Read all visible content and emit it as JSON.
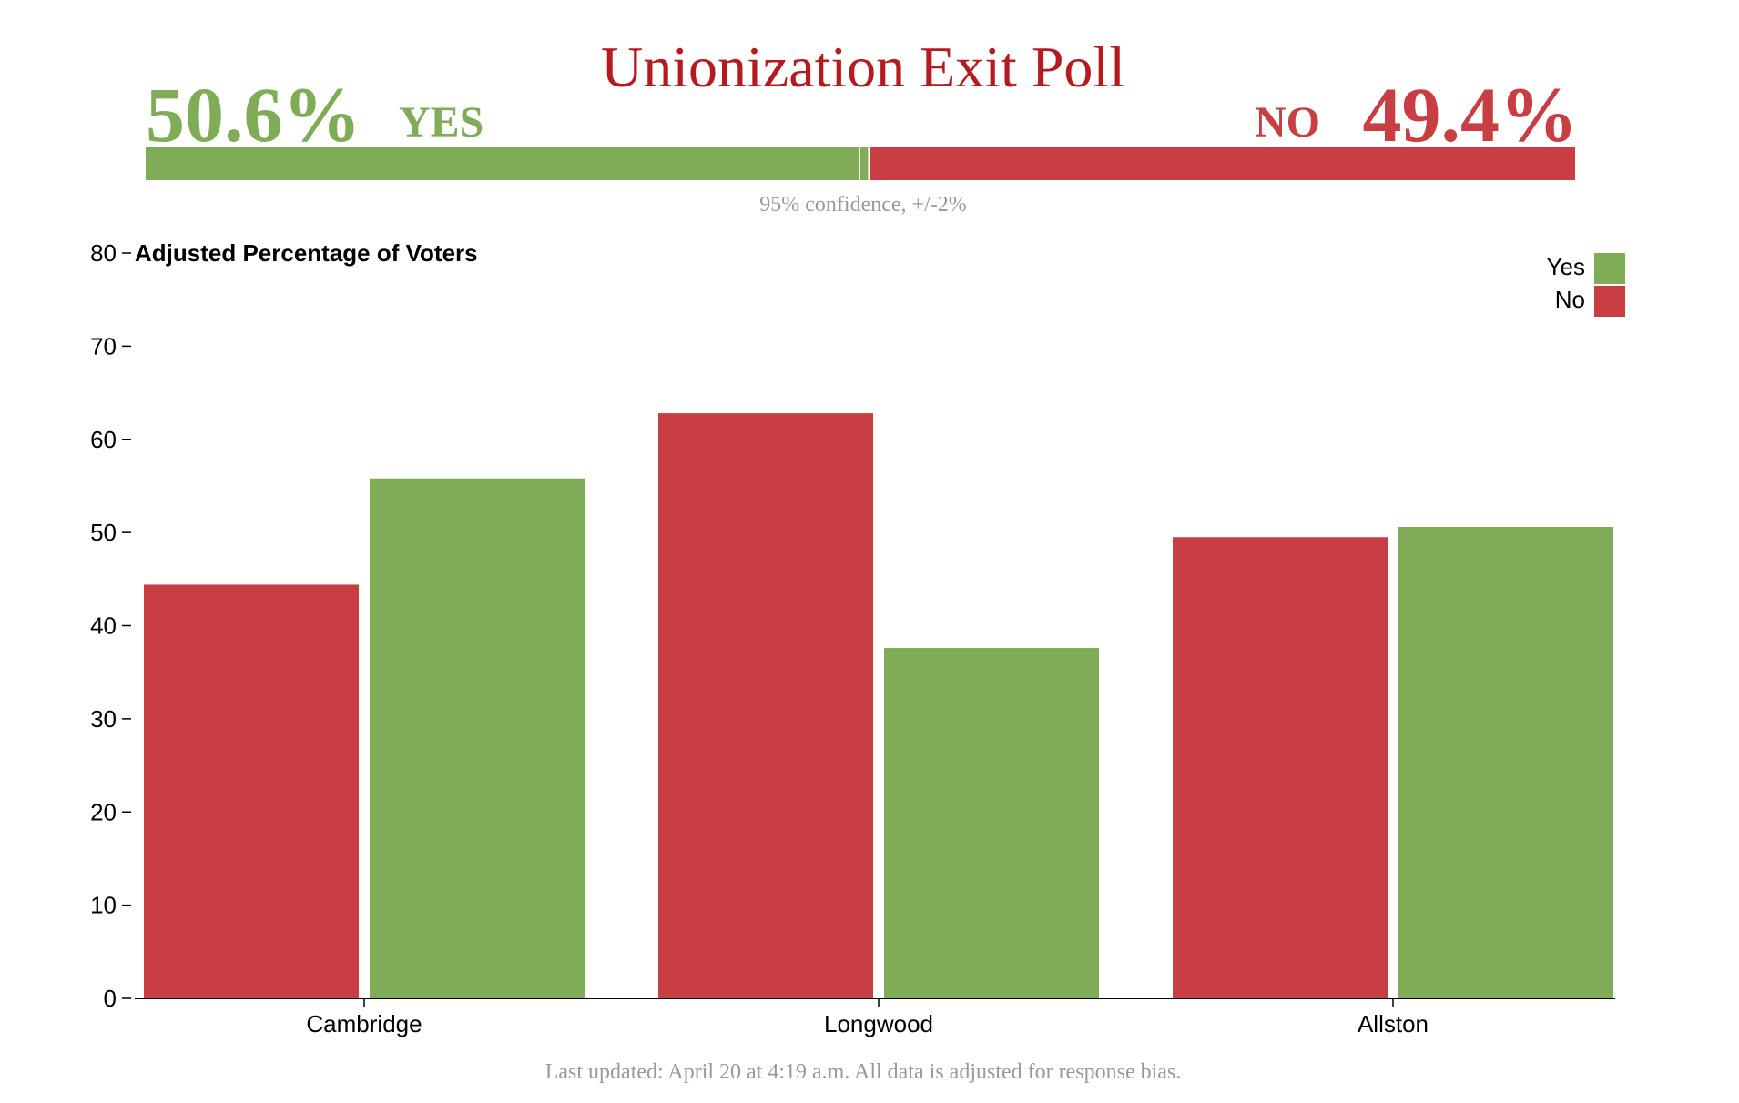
{
  "header": {
    "title": "Unionization Exit Poll",
    "yes_percent_label": "50.6%",
    "yes_label": "YES",
    "no_label": "NO",
    "no_percent_label": "49.4%",
    "confidence_note": "95% confidence, +/-2%"
  },
  "summary": {
    "yes_share": 50.6,
    "no_share": 49.4
  },
  "colors": {
    "yes": "#80ab57",
    "no": "#c93e42",
    "title": "#b51a1f",
    "note": "#999999",
    "axis": "#000000"
  },
  "chart_data": {
    "type": "bar",
    "title": "Adjusted Percentage of Voters",
    "ylabel": "",
    "xlabel": "",
    "ylim": [
      0,
      80
    ],
    "yticks": [
      0,
      10,
      20,
      30,
      40,
      50,
      60,
      70,
      80
    ],
    "categories": [
      "Cambridge",
      "Longwood",
      "Allston"
    ],
    "series": [
      {
        "name": "No",
        "color": "#c93e42",
        "values": [
          44.4,
          62.8,
          49.5
        ]
      },
      {
        "name": "Yes",
        "color": "#80ab57",
        "values": [
          55.8,
          37.6,
          50.6
        ]
      }
    ],
    "legend_position": "top-right",
    "legend_order": [
      "Yes",
      "No"
    ],
    "grid": false
  },
  "footer": {
    "text": "Last updated: April 20 at 4:19 a.m. All data is adjusted for response bias."
  }
}
